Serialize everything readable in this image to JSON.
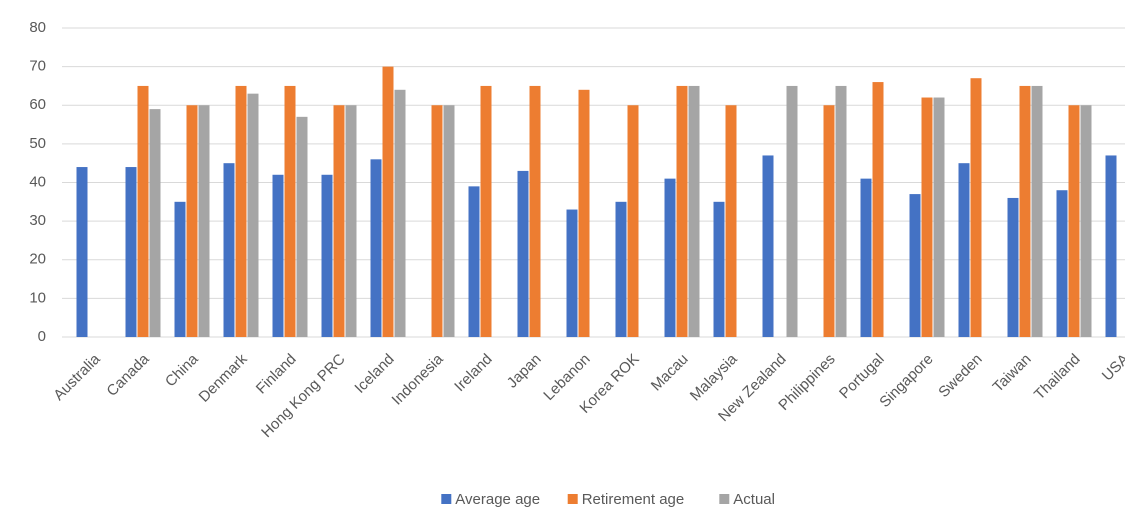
{
  "chart_data": {
    "type": "bar",
    "categories": [
      "Australia",
      "Canada",
      "China",
      "Denmark",
      "Finland",
      "Hong Kong PRC",
      "Iceland",
      "Indonesia",
      "Ireland",
      "Japan",
      "Lebanon",
      "Korea ROK",
      "Macau",
      "Malaysia",
      "New Zealand",
      "Philippines",
      "Portugal",
      "Singapore",
      "Sweden",
      "Taiwan",
      "Thailand",
      "USA"
    ],
    "series": [
      {
        "name": "Average age",
        "color": "#4472c4",
        "values": [
          44,
          44,
          35,
          45,
          42,
          42,
          46,
          null,
          39,
          43,
          33,
          35,
          41,
          35,
          47,
          null,
          41,
          37,
          45,
          36,
          38,
          47
        ]
      },
      {
        "name": "Retirement age",
        "color": "#ed7d31",
        "values": [
          null,
          65,
          60,
          65,
          65,
          60,
          70,
          60,
          65,
          65,
          64,
          60,
          65,
          60,
          null,
          60,
          66,
          62,
          67,
          65,
          60,
          null
        ]
      },
      {
        "name": "Actual",
        "color": "#a5a5a5",
        "values": [
          null,
          59,
          60,
          63,
          57,
          60,
          64,
          60,
          null,
          null,
          null,
          null,
          65,
          null,
          65,
          65,
          null,
          62,
          null,
          65,
          60,
          null
        ]
      }
    ],
    "ylim": [
      0,
      80
    ],
    "yticks": [
      0,
      10,
      20,
      30,
      40,
      50,
      60,
      70,
      80
    ],
    "grid": true,
    "legend": "bottom"
  }
}
